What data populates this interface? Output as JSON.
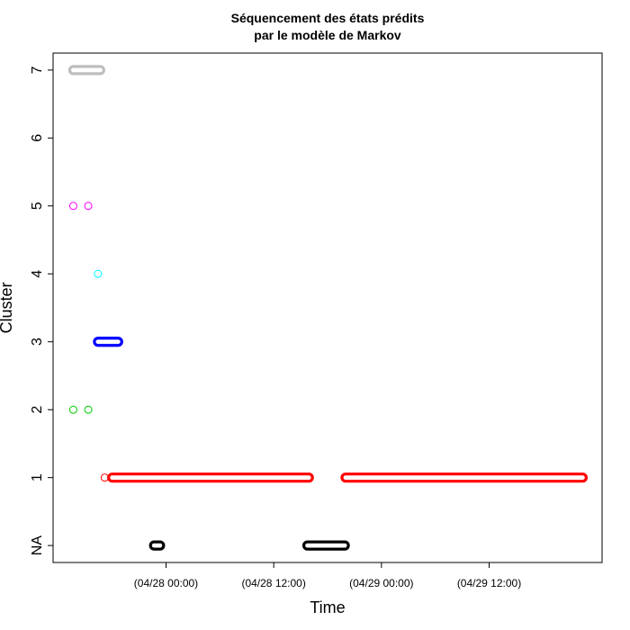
{
  "chart_data": {
    "type": "scatter",
    "title_lines": [
      "Séquencement des états prédits",
      "par le modèle de Markov"
    ],
    "xlabel": "Time",
    "ylabel": "Cluster",
    "x_ticks": [
      {
        "at": "04/28 00:00",
        "label": "(04/28 00:00)"
      },
      {
        "at": "04/28 12:00",
        "label": "(04/28 12:00)"
      },
      {
        "at": "04/29 00:00",
        "label": "(04/29 00:00)"
      },
      {
        "at": "04/29 12:00",
        "label": "(04/29 12:00)"
      }
    ],
    "y_ticks": [
      "NA",
      "1",
      "2",
      "3",
      "4",
      "5",
      "6",
      "7"
    ],
    "xlim": [
      "04/27 11:25",
      "04/30 00:35"
    ],
    "ylim": [
      -0.25,
      7.25
    ],
    "grid": false,
    "marker": "open-circle",
    "series": [
      {
        "state": "7",
        "color": "#bebebe",
        "points": [
          {
            "x_start": "04/27 13:40",
            "x_end": "04/27 16:40",
            "y": 7
          }
        ]
      },
      {
        "state": "5",
        "color": "#ff00ff",
        "points": [
          {
            "x": "04/27 13:40",
            "y": 5
          },
          {
            "x": "04/27 15:20",
            "y": 5
          }
        ]
      },
      {
        "state": "4",
        "color": "#00ffff",
        "points": [
          {
            "x": "04/27 16:25",
            "y": 4
          }
        ]
      },
      {
        "state": "3",
        "color": "#0000ff",
        "points": [
          {
            "x_start": "04/27 16:25",
            "x_end": "04/27 18:40",
            "y": 3
          }
        ]
      },
      {
        "state": "2",
        "color": "#00cd00",
        "points": [
          {
            "x": "04/27 13:40",
            "y": 2
          },
          {
            "x": "04/27 15:20",
            "y": 2
          }
        ]
      },
      {
        "state": "1",
        "color": "#ff0000",
        "points": [
          {
            "x": "04/27 17:10",
            "y": 1
          },
          {
            "x_start": "04/27 18:00",
            "x_end": "04/28 15:55",
            "y": 1
          },
          {
            "x_start": "04/28 20:00",
            "x_end": "04/29 22:25",
            "y": 1
          }
        ]
      },
      {
        "state": "NA",
        "color": "#000000",
        "points": [
          {
            "x_start": "04/27 22:40",
            "x_end": "04/27 23:20",
            "y": 0
          },
          {
            "x_start": "04/28 15:45",
            "x_end": "04/28 19:55",
            "y": 0
          }
        ]
      }
    ]
  }
}
